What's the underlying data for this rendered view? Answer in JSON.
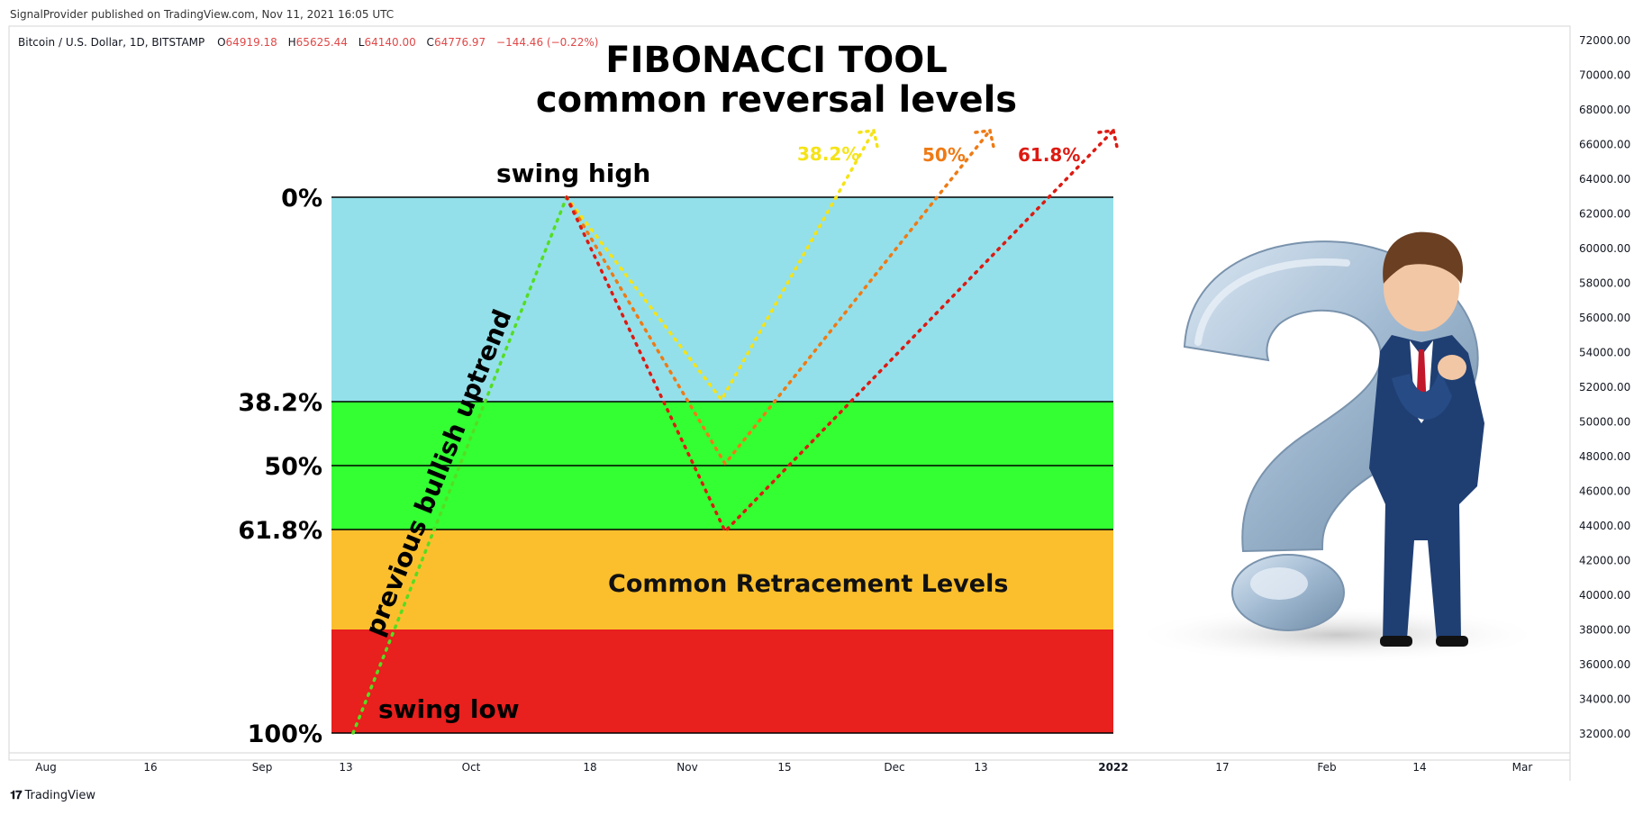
{
  "header": {
    "published": "SignalProvider published on TradingView.com, Nov 11, 2021 16:05 UTC"
  },
  "symbol": {
    "name": "Bitcoin / U.S. Dollar, 1D, BITSTAMP",
    "o_label": "O",
    "o_value": "64919.18",
    "h_label": "H",
    "h_value": "65625.44",
    "l_label": "L",
    "l_value": "64140.00",
    "c_label": "C",
    "c_value": "64776.97",
    "change": "−144.46 (−0.22%)"
  },
  "chart_data": {
    "type": "annotated price chart (fibonacci retracement)",
    "title": [
      "FIBONACCI TOOL",
      "common reversal levels"
    ],
    "y_axis": {
      "ticks": [
        "72000.00",
        "70000.00",
        "68000.00",
        "66000.00",
        "64000.00",
        "62000.00",
        "60000.00",
        "58000.00",
        "56000.00",
        "54000.00",
        "52000.00",
        "50000.00",
        "48000.00",
        "46000.00",
        "44000.00",
        "42000.00",
        "40000.00",
        "38000.00",
        "36000.00",
        "34000.00",
        "32000.00"
      ],
      "range": [
        32000,
        72000
      ]
    },
    "x_axis": {
      "ticks": [
        "Aug",
        "16",
        "Sep",
        "13",
        "Oct",
        "18",
        "Nov",
        "15",
        "Dec",
        "13",
        "2022",
        "17",
        "Feb",
        "14",
        "Mar"
      ],
      "bold": [
        "2022"
      ]
    },
    "fib_levels": [
      {
        "label": "0%",
        "price": 63000
      },
      {
        "label": "38.2%",
        "price": 51200
      },
      {
        "label": "50%",
        "price": 47500
      },
      {
        "label": "61.8%",
        "price": 43800
      },
      {
        "label": "",
        "price": 38100
      },
      {
        "label": "100%",
        "price": 32000
      }
    ],
    "zones": [
      {
        "from": 63000,
        "to": 51200,
        "color": "#93e0ea"
      },
      {
        "from": 51200,
        "to": 43800,
        "color": "#33ff33"
      },
      {
        "from": 43800,
        "to": 38100,
        "color": "#fbbf2d"
      },
      {
        "from": 38100,
        "to": 32000,
        "color": "#e8201e"
      }
    ],
    "paths": [
      {
        "name": "previous bullish uptrend",
        "color": "#55dd22",
        "points": [
          [
            "Sep 13",
            32000
          ],
          [
            "Oct 16",
            63000
          ]
        ]
      },
      {
        "name": "38.2%",
        "color": "#f5e317",
        "points": [
          [
            "Oct 16",
            63000
          ],
          [
            "Nov 6",
            51300
          ],
          [
            "Nov 27",
            66600
          ]
        ]
      },
      {
        "name": "50%",
        "color": "#ef7a14",
        "points": [
          [
            "Oct 16",
            63000
          ],
          [
            "Nov 7",
            47600
          ],
          [
            "Dec 14",
            66600
          ]
        ]
      },
      {
        "name": "61.8%",
        "color": "#dd1a12",
        "points": [
          [
            "Oct 16",
            63000
          ],
          [
            "Nov 7",
            43800
          ],
          [
            "Jan 2",
            66600
          ]
        ]
      }
    ],
    "annotations": {
      "swing_high": "swing high",
      "swing_low": "swing low",
      "uptrend": "previous bullish uptrend",
      "zone_label": "Common Retracement Levels",
      "arrow_labels": [
        {
          "text": "38.2%",
          "color": "#f5e317"
        },
        {
          "text": "50%",
          "color": "#ef7a14"
        },
        {
          "text": "61.8%",
          "color": "#dd1a12"
        }
      ]
    }
  },
  "illustration": "businessman-question-mark",
  "footer": {
    "brand": "TradingView"
  },
  "colors": {
    "red_values": "#e04848",
    "axis_text": "#131722"
  }
}
